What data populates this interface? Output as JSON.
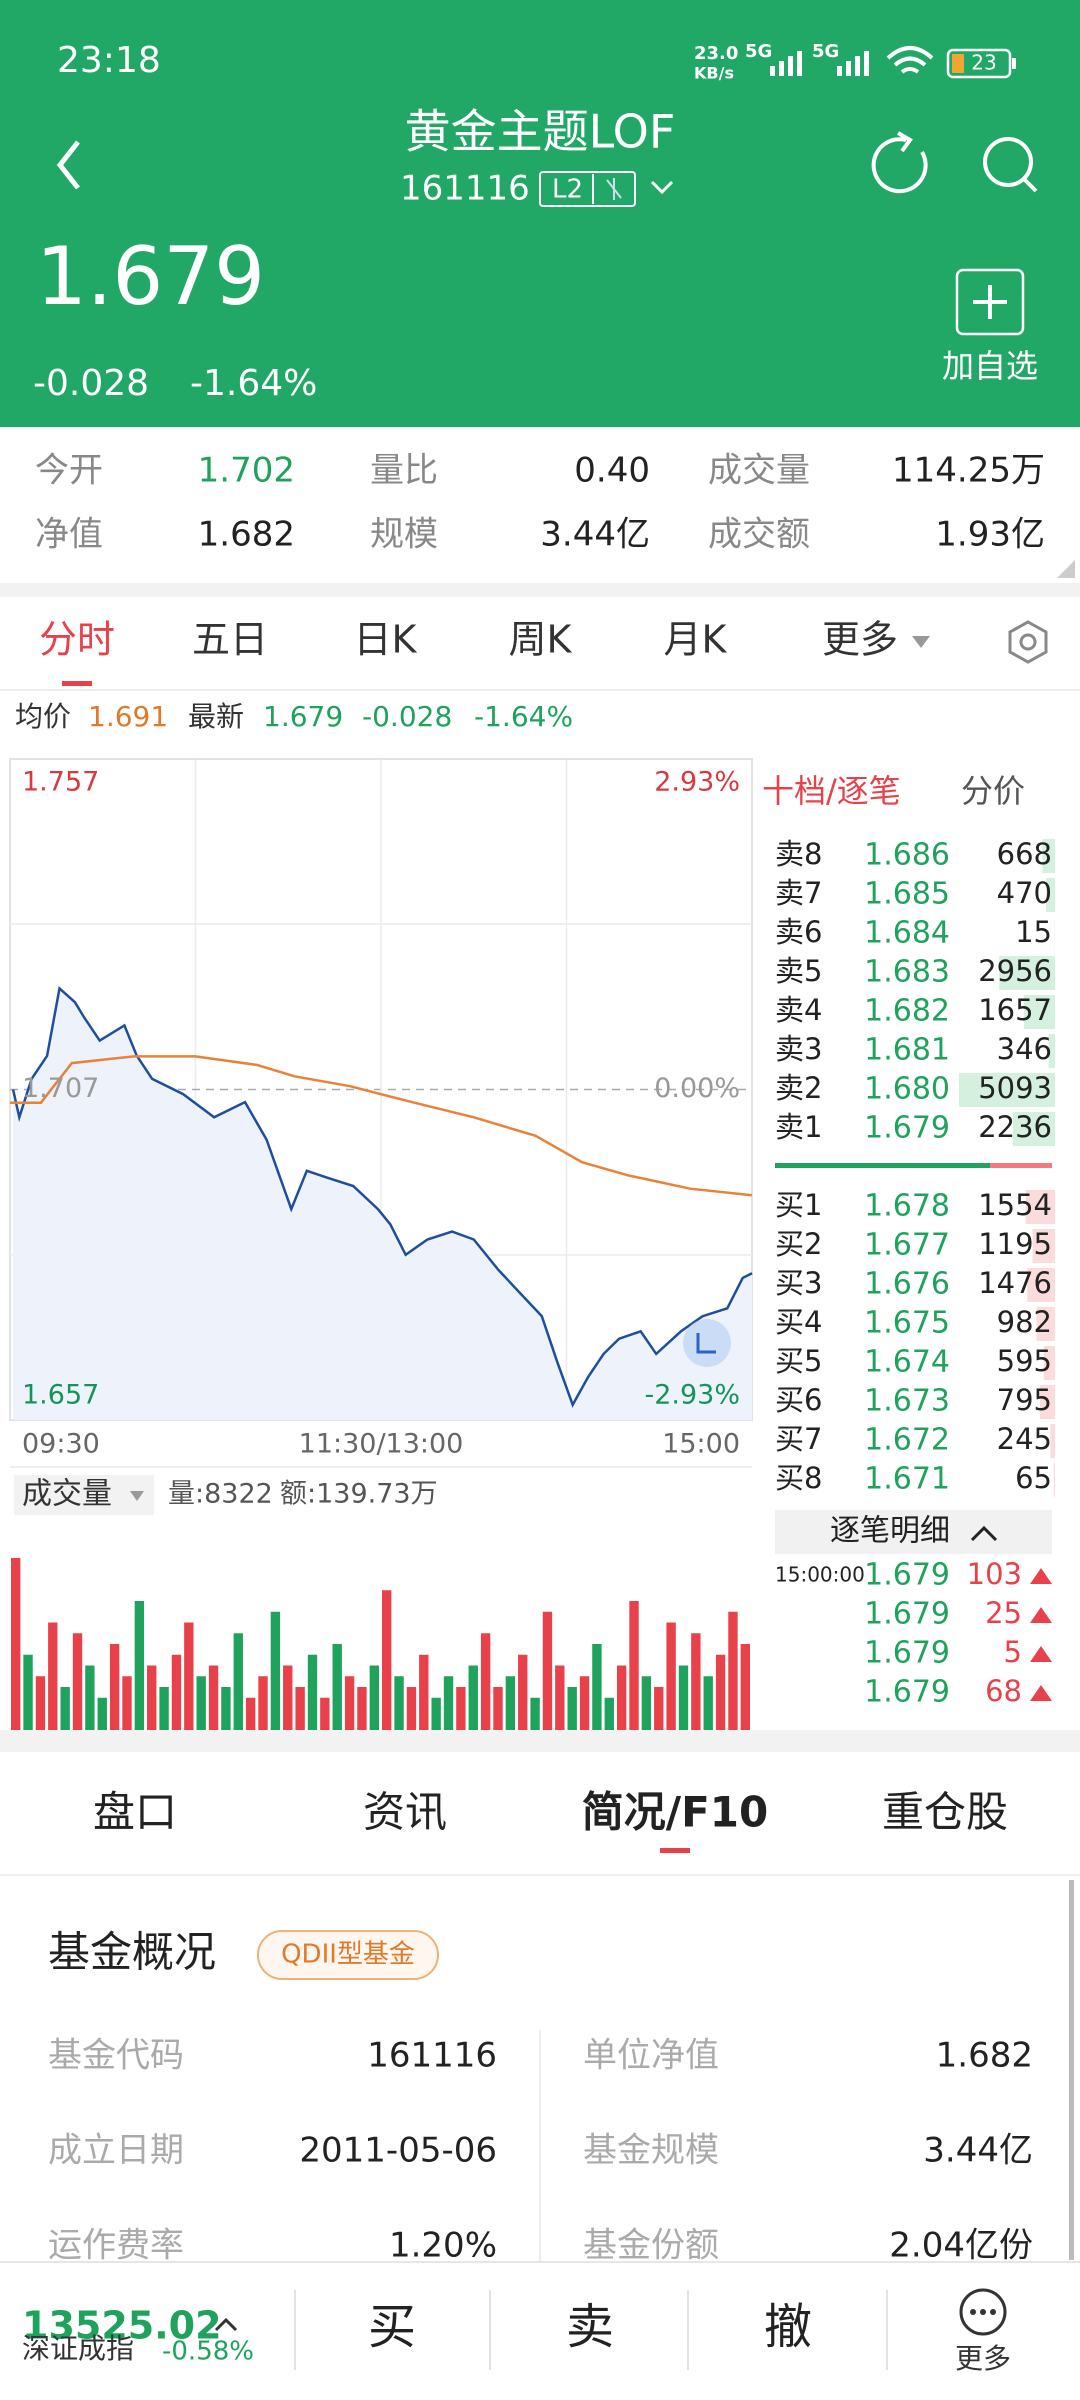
{
  "status": {
    "time": "23:18",
    "net_speed": "23.0",
    "net_unit": "KB/s",
    "signal1": "5G",
    "signal2": "5G",
    "battery": "23"
  },
  "header": {
    "title": "黄金主题LOF",
    "code": "161116",
    "level": "L2",
    "price": "1.679",
    "change": "-0.028",
    "change_pct": "-1.64%",
    "add_watch": "加自选"
  },
  "stats": {
    "rows": [
      [
        {
          "label": "今开",
          "value": "1.702"
        },
        {
          "label": "量比",
          "value": "0.40"
        },
        {
          "label": "成交量",
          "value": "114.25万"
        }
      ],
      [
        {
          "label": "净值",
          "value": "1.682"
        },
        {
          "label": "规模",
          "value": "3.44亿"
        },
        {
          "label": "成交额",
          "value": "1.93亿"
        }
      ]
    ]
  },
  "tabs": [
    "分时",
    "五日",
    "日K",
    "周K",
    "月K",
    "更多"
  ],
  "summary": {
    "avg_label": "均价",
    "avg": "1.691",
    "last_label": "最新",
    "last": "1.679",
    "change": "-0.028",
    "change_pct": "-1.64%"
  },
  "chart_data": {
    "type": "line",
    "xlim": [
      0,
      240
    ],
    "xticks": [
      {
        "value": 0,
        "label": "09:30"
      },
      {
        "value": 120,
        "label": "11:30/13:00"
      },
      {
        "value": 240,
        "label": "15:00"
      }
    ],
    "ylim": [
      1.657,
      1.757
    ],
    "yticks": [
      1.657,
      1.707,
      1.757
    ],
    "y2lim": [
      -2.93,
      2.93
    ],
    "y2ticks": [
      {
        "value": -2.93,
        "label": "-2.93%"
      },
      {
        "value": 0,
        "label": "0.00%"
      },
      {
        "value": 2.93,
        "label": "2.93%"
      }
    ],
    "grid": true,
    "series": [
      {
        "color": "#1f4e9c",
        "fill": "#eef3fb",
        "x": [
          1,
          3,
          7,
          12,
          16,
          21,
          24,
          29,
          37,
          41,
          46,
          56,
          66,
          76,
          83,
          91,
          96,
          103,
          111,
          119,
          123,
          128,
          135,
          143,
          150,
          158,
          165,
          172,
          177,
          182,
          187,
          192,
          197,
          204,
          209,
          217,
          224,
          232,
          237,
          240
        ],
        "values": [
          1.707,
          1.7028,
          1.7086,
          1.7121,
          1.7223,
          1.7202,
          1.7179,
          1.7144,
          1.7167,
          1.7121,
          1.7086,
          1.7063,
          1.7028,
          1.7051,
          1.6994,
          1.6889,
          1.6947,
          1.6936,
          1.6924,
          1.6889,
          1.6866,
          1.682,
          1.6843,
          1.6855,
          1.6843,
          1.6797,
          1.6762,
          1.6727,
          1.6658,
          1.6593,
          1.6635,
          1.667,
          1.6693,
          1.6704,
          1.667,
          1.6704,
          1.6727,
          1.6739,
          1.6785,
          1.6792
        ]
      },
      {
        "color": "#e8823a",
        "x": [
          0,
          10,
          20,
          40,
          60,
          80,
          92,
          110,
          130,
          150,
          170,
          185,
          200,
          220,
          240
        ],
        "values": [
          1.705,
          1.705,
          1.711,
          1.712,
          1.712,
          1.7107,
          1.709,
          1.7075,
          1.7051,
          1.7028,
          1.7,
          1.696,
          1.694,
          1.692,
          1.691
        ]
      }
    ]
  },
  "volume": {
    "label": "成交量",
    "vol_text": "量:8322",
    "amt_text": "额:139.73万",
    "ylim": [
      0,
      100
    ],
    "color_up": "#e8414a",
    "color_down": "#1fa35c",
    "values": [
      80,
      35,
      25,
      50,
      20,
      45,
      30,
      15,
      40,
      25,
      60,
      30,
      20,
      35,
      50,
      25,
      30,
      20,
      45,
      15,
      25,
      55,
      30,
      20,
      35,
      15,
      40,
      25,
      20,
      30,
      65,
      25,
      20,
      35,
      15,
      25,
      20,
      30,
      45,
      20,
      25,
      35,
      15,
      55,
      30,
      20,
      25,
      40,
      15,
      30,
      60,
      25,
      20,
      50,
      30,
      45,
      25,
      35,
      55,
      40
    ],
    "up": [
      true,
      false,
      true,
      true,
      false,
      true,
      false,
      false,
      true,
      true,
      false,
      true,
      false,
      true,
      true,
      false,
      true,
      false,
      false,
      true,
      true,
      false,
      true,
      true,
      false,
      true,
      false,
      true,
      true,
      false,
      true,
      false,
      true,
      true,
      false,
      false,
      true,
      false,
      true,
      true,
      false,
      true,
      false,
      true,
      true,
      false,
      true,
      false,
      false,
      true,
      true,
      false,
      true,
      true,
      false,
      true,
      false,
      true,
      true,
      true
    ]
  },
  "order_book": {
    "tab": "十档/逐笔",
    "tab2": "分价",
    "sell": [
      {
        "label": "卖8",
        "price": "1.686",
        "volume": 668
      },
      {
        "label": "卖7",
        "price": "1.685",
        "volume": 470
      },
      {
        "label": "卖6",
        "price": "1.684",
        "volume": 15
      },
      {
        "label": "卖5",
        "price": "1.683",
        "volume": 2956
      },
      {
        "label": "卖4",
        "price": "1.682",
        "volume": 1657
      },
      {
        "label": "卖3",
        "price": "1.681",
        "volume": 346
      },
      {
        "label": "卖2",
        "price": "1.680",
        "volume": 5093
      },
      {
        "label": "卖1",
        "price": "1.679",
        "volume": 2236
      }
    ],
    "buy": [
      {
        "label": "买1",
        "price": "1.678",
        "volume": 1554
      },
      {
        "label": "买2",
        "price": "1.677",
        "volume": 1195
      },
      {
        "label": "买3",
        "price": "1.676",
        "volume": 1476
      },
      {
        "label": "买4",
        "price": "1.675",
        "volume": 982
      },
      {
        "label": "买5",
        "price": "1.674",
        "volume": 595
      },
      {
        "label": "买6",
        "price": "1.673",
        "volume": 795
      },
      {
        "label": "买7",
        "price": "1.672",
        "volume": 245
      },
      {
        "label": "买8",
        "price": "1.671",
        "volume": 65
      }
    ]
  },
  "ticks": {
    "title": "逐笔明细",
    "rows": [
      {
        "time": "15:00:00",
        "price": "1.679",
        "volume": 103
      },
      {
        "price": "1.679",
        "volume": 25
      },
      {
        "price": "1.679",
        "volume": 5
      },
      {
        "price": "1.679",
        "volume": 68
      }
    ]
  },
  "detail_tabs": [
    "盘口",
    "资讯",
    "简况/F10",
    "重仓股"
  ],
  "fund": {
    "title": "基金概况",
    "badge": "QDII型基金",
    "rows": [
      [
        {
          "label": "基金代码",
          "value": "161116"
        },
        {
          "label": "单位净值",
          "value": "1.682"
        }
      ],
      [
        {
          "label": "成立日期",
          "value": "2011-05-06"
        },
        {
          "label": "基金规模",
          "value": "3.44亿"
        }
      ],
      [
        {
          "label": "运作费率",
          "value": "1.20%"
        },
        {
          "label": "基金份额",
          "value": "2.04亿份"
        }
      ]
    ]
  },
  "bottom": {
    "index_value": "13525.02",
    "index_name": "深证成指",
    "index_change": "-0.58%",
    "buttons": [
      "买",
      "卖",
      "撤"
    ],
    "more": "更多"
  }
}
